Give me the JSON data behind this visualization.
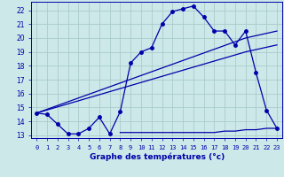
{
  "xlabel": "Graphe des températures (°c)",
  "bg_color": "#cce8e8",
  "grid_color": "#aacccc",
  "line_color": "#0000aa",
  "xlim": [
    -0.5,
    23.5
  ],
  "ylim": [
    12.8,
    22.6
  ],
  "yticks": [
    13,
    14,
    15,
    16,
    17,
    18,
    19,
    20,
    21,
    22
  ],
  "xticks": [
    0,
    1,
    2,
    3,
    4,
    5,
    6,
    7,
    8,
    9,
    10,
    11,
    12,
    13,
    14,
    15,
    16,
    17,
    18,
    19,
    20,
    21,
    22,
    23
  ],
  "curve1_x": [
    0,
    1,
    2,
    3,
    4,
    5,
    6,
    7,
    8,
    9,
    10,
    11,
    12,
    13,
    14,
    15,
    16,
    17,
    18,
    19,
    20,
    21,
    22,
    23
  ],
  "curve1_y": [
    14.6,
    14.5,
    13.8,
    13.1,
    13.1,
    13.5,
    14.3,
    13.1,
    14.7,
    18.2,
    19.0,
    19.3,
    21.0,
    21.9,
    22.1,
    22.3,
    21.5,
    20.5,
    20.5,
    19.5,
    20.5,
    17.5,
    14.8,
    13.5
  ],
  "curve2_x": [
    0,
    20,
    23
  ],
  "curve2_y": [
    14.6,
    20.0,
    20.5
  ],
  "curve3_x": [
    0,
    20,
    23
  ],
  "curve3_y": [
    14.6,
    19.0,
    19.5
  ],
  "curve4_x": [
    8,
    9,
    10,
    11,
    12,
    13,
    14,
    15,
    16,
    17,
    18,
    19,
    20,
    21,
    22,
    23
  ],
  "curve4_y": [
    13.2,
    13.2,
    13.2,
    13.2,
    13.2,
    13.2,
    13.2,
    13.2,
    13.2,
    13.2,
    13.3,
    13.3,
    13.4,
    13.4,
    13.5,
    13.5
  ]
}
